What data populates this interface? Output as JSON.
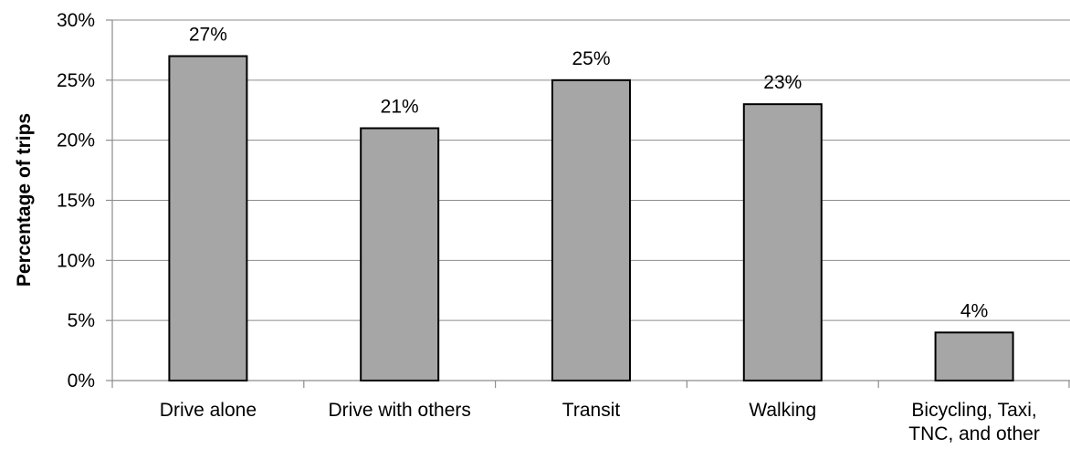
{
  "chart_data": {
    "type": "bar",
    "categories": [
      [
        "Drive alone"
      ],
      [
        "Drive with others"
      ],
      [
        "Transit"
      ],
      [
        "Walking"
      ],
      [
        "Bicycling, Taxi,",
        "TNC, and other"
      ]
    ],
    "values": [
      27,
      21,
      25,
      23,
      4
    ],
    "data_labels": [
      "27%",
      "21%",
      "25%",
      "23%",
      "4%"
    ],
    "title": "",
    "xlabel": "",
    "ylabel": "Percentage of trips",
    "ylim": [
      0,
      30
    ],
    "yticks": [
      0,
      5,
      10,
      15,
      20,
      25,
      30
    ],
    "ytick_labels": [
      "0%",
      "5%",
      "10%",
      "15%",
      "20%",
      "25%",
      "30%"
    ],
    "grid": true,
    "legend": "none",
    "colors": {
      "bar_fill": "#a6a6a6",
      "bar_stroke": "#000000",
      "grid": "#8c8c8c"
    }
  }
}
